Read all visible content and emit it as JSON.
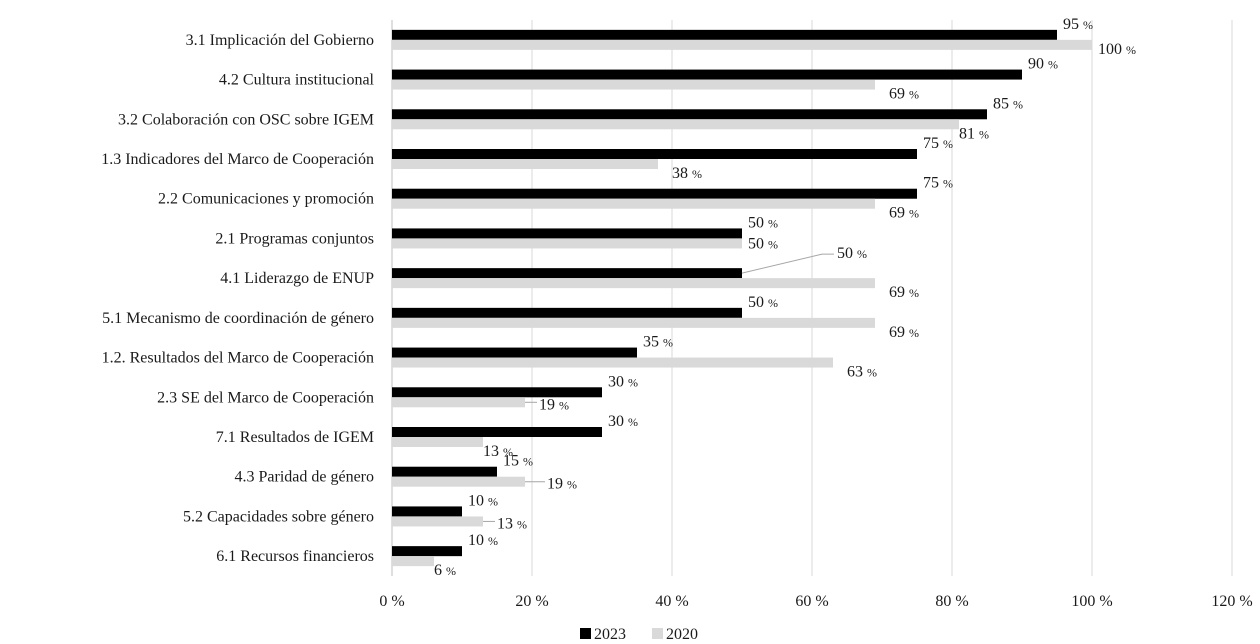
{
  "chart_data": {
    "type": "bar",
    "orientation": "horizontal",
    "title": "",
    "xlabel": "",
    "ylabel": "",
    "xlim": [
      0,
      120
    ],
    "x_ticks": [
      0,
      20,
      40,
      60,
      80,
      100,
      120
    ],
    "x_tick_labels": [
      "0 %",
      "20 %",
      "40 %",
      "60 %",
      "80 %",
      "100 %",
      "120 %"
    ],
    "grid": "vertical",
    "legend_position": "bottom",
    "value_suffix": "%",
    "categories": [
      "3.1 Implicación del Gobierno",
      "4.2 Cultura institucional",
      "3.2 Colaboración con OSC sobre IGEM",
      "1.3 Indicadores del Marco de Cooperación",
      "2.2 Comunicaciones y promoción",
      "2.1 Programas conjuntos",
      "4.1 Liderazgo de ENUP",
      "5.1 Mecanismo de coordinación de género",
      "1.2. Resultados del Marco de Cooperación",
      "2.3 SE del Marco de Cooperación",
      "7.1 Resultados de IGEM",
      "4.3 Paridad de género",
      "5.2 Capacidades sobre género",
      "6.1 Recursos financieros"
    ],
    "series": [
      {
        "name": "2023",
        "color": "#000000",
        "values": [
          95,
          90,
          85,
          75,
          75,
          50,
          50,
          50,
          35,
          30,
          30,
          15,
          10,
          10
        ]
      },
      {
        "name": "2020",
        "color": "#d9d9d9",
        "values": [
          100,
          69,
          81,
          38,
          69,
          50,
          69,
          69,
          63,
          19,
          13,
          19,
          13,
          6
        ]
      }
    ]
  }
}
